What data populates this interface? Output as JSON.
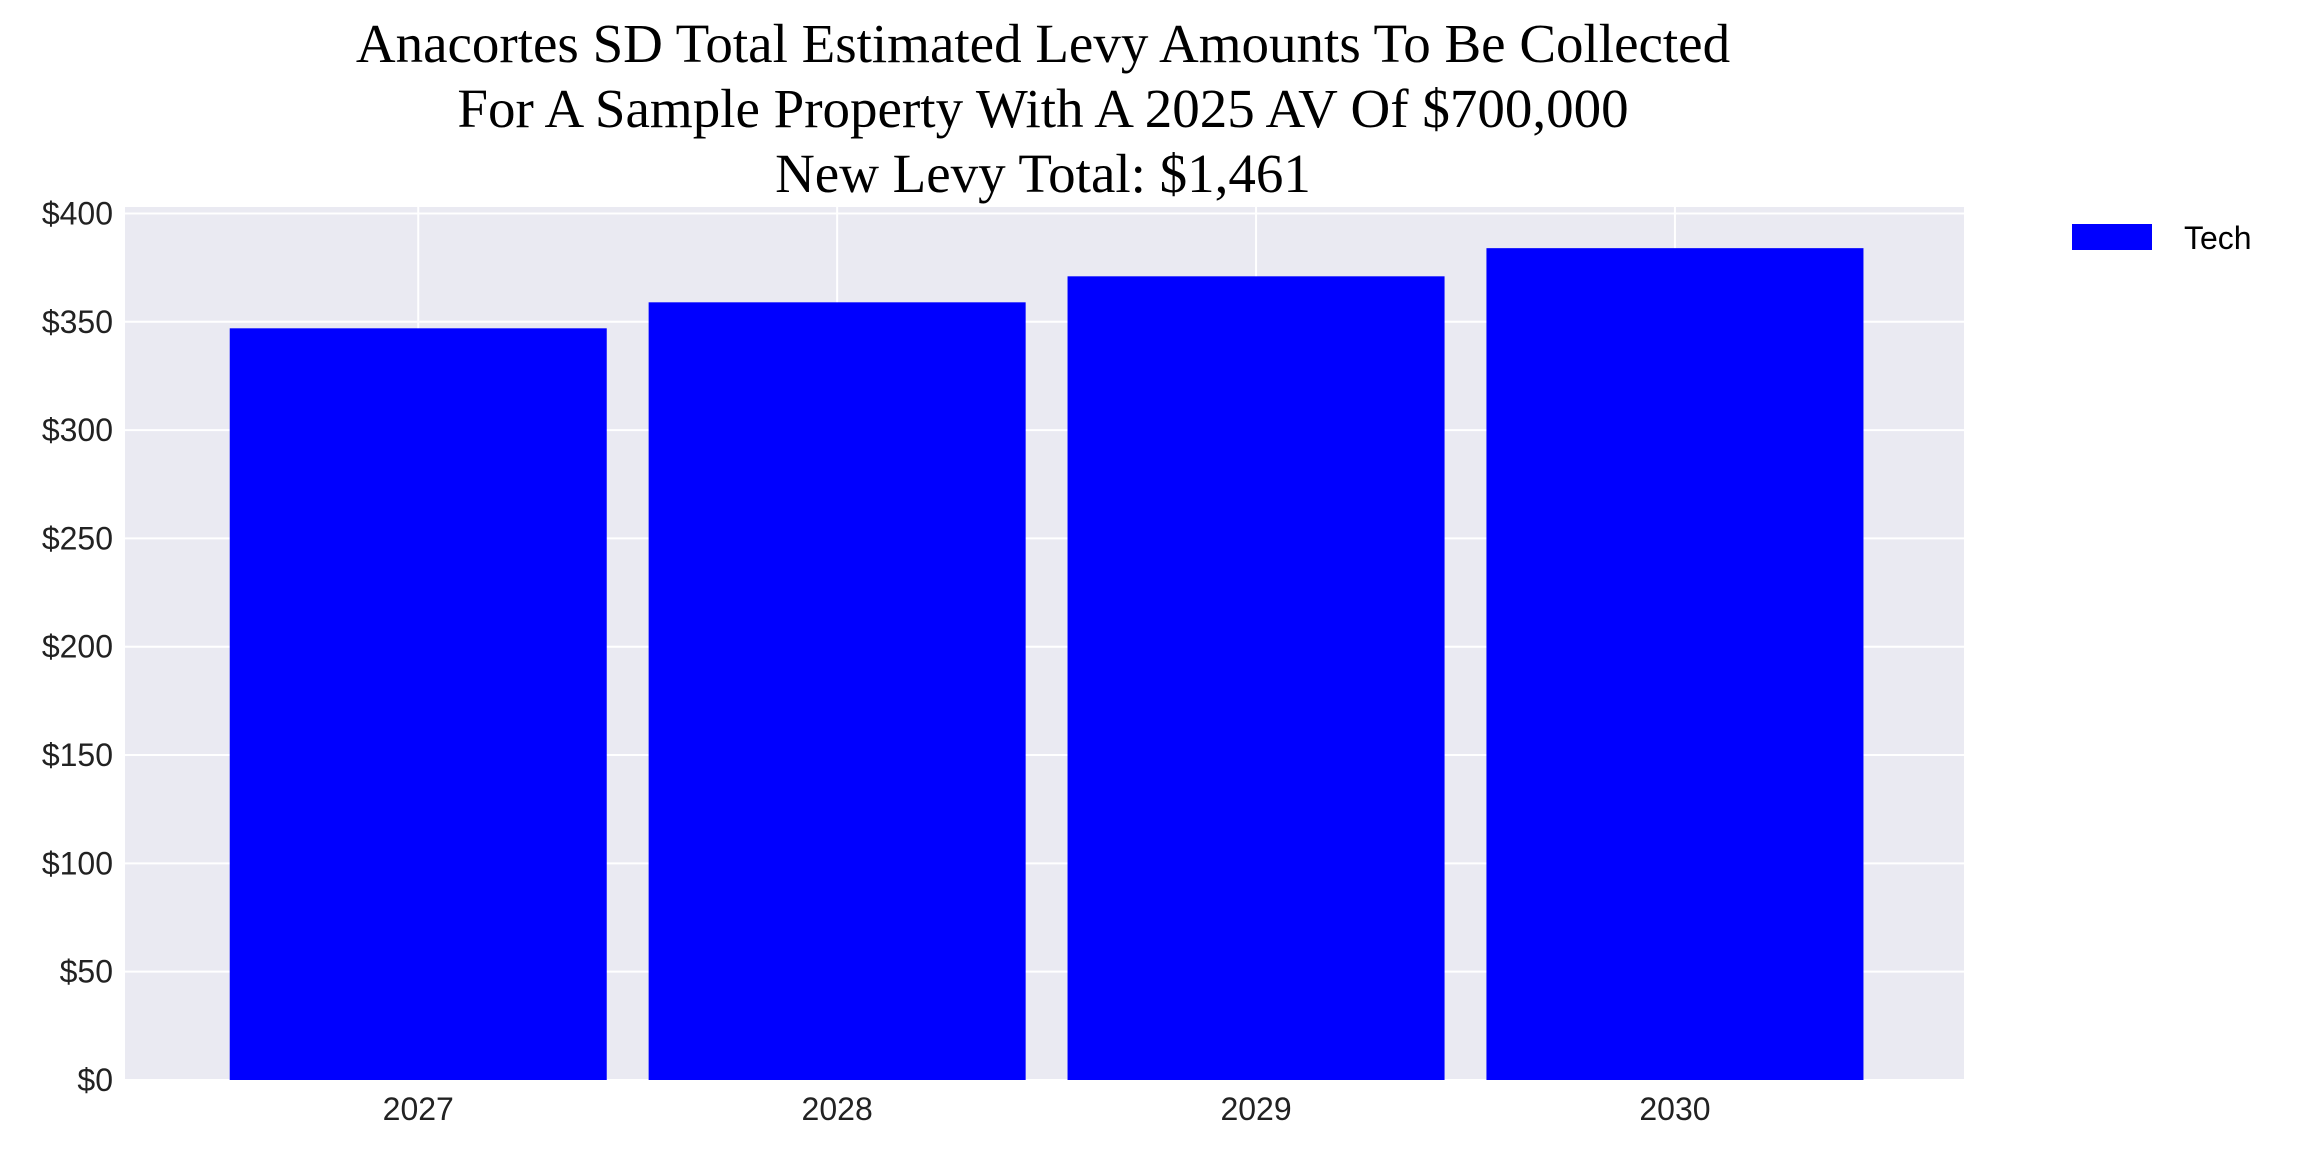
{
  "chart_data": {
    "type": "bar",
    "title": [
      "Anacortes SD Total Estimated Levy Amounts To Be Collected",
      "For A Sample Property With A 2025 AV Of $700,000",
      "New Levy Total: $1,461"
    ],
    "xlabel": "",
    "ylabel": "",
    "categories": [
      "2027",
      "2028",
      "2029",
      "2030"
    ],
    "series": [
      {
        "name": "Tech",
        "values": [
          347,
          359,
          371,
          384
        ],
        "color": "#0000ff"
      }
    ],
    "ylim": [
      0,
      403
    ],
    "yticks": [
      0,
      50,
      100,
      150,
      200,
      250,
      300,
      350,
      400
    ],
    "ytick_labels": [
      "$0",
      "$50",
      "$100",
      "$150",
      "$200",
      "$250",
      "$300",
      "$350",
      "$400"
    ],
    "grid": true,
    "background": "#eaeaf2",
    "legend": "outside-top-right"
  }
}
